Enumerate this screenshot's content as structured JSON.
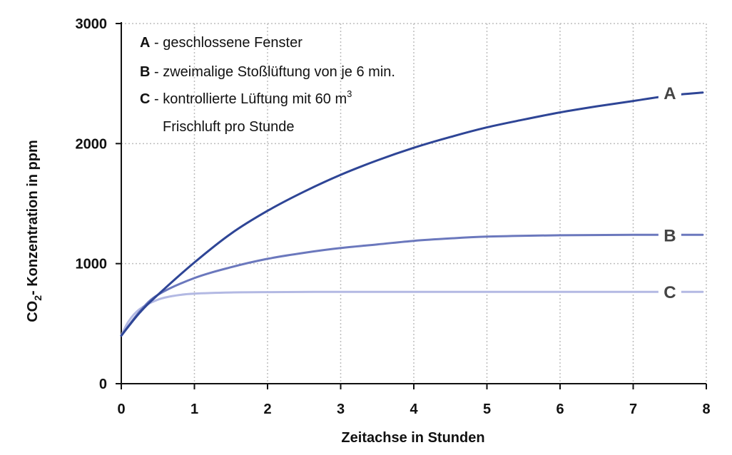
{
  "chart_data": {
    "type": "line",
    "title": "",
    "xlabel": "Zeitachse in Stunden",
    "ylabel": {
      "prefix": "CO",
      "sub": "2",
      "suffix": "- Konzentration in ppm"
    },
    "xlim": [
      0,
      8
    ],
    "ylim": [
      0,
      3000
    ],
    "x_ticks": [
      0,
      1,
      2,
      3,
      4,
      5,
      6,
      7,
      8
    ],
    "y_ticks": [
      0,
      1000,
      2000,
      3000
    ],
    "grid": true,
    "legend_position": "top-left",
    "legend": [
      {
        "key": "A",
        "text": " - geschlossene Fenster"
      },
      {
        "key": "B",
        "text": " - zweimalige Stoßlüftung von je 6 min."
      },
      {
        "key": "C",
        "text": " - kontrollierte Lüftung mit 60 m",
        "sup": "3",
        "continuation": "Frischluft pro Stunde"
      }
    ],
    "series": [
      {
        "name": "A",
        "color": "#2e4596",
        "x": [
          0,
          0.25,
          0.5,
          1,
          1.5,
          2,
          2.5,
          3,
          3.5,
          4,
          4.5,
          5,
          5.5,
          6,
          6.5,
          7,
          7.5,
          7.95
        ],
        "y": [
          400,
          590,
          740,
          1010,
          1250,
          1440,
          1600,
          1740,
          1860,
          1965,
          2055,
          2135,
          2200,
          2260,
          2310,
          2355,
          2400,
          2425
        ]
      },
      {
        "name": "B",
        "color": "#6b78bd",
        "x": [
          0,
          0.25,
          0.5,
          1,
          1.5,
          2,
          2.5,
          3,
          3.5,
          4,
          4.5,
          5,
          5.5,
          6,
          7,
          7.95
        ],
        "y": [
          400,
          600,
          740,
          880,
          970,
          1040,
          1090,
          1130,
          1160,
          1190,
          1210,
          1225,
          1232,
          1236,
          1240,
          1240
        ]
      },
      {
        "name": "C",
        "color": "#b3b9e3",
        "x": [
          0,
          0.1,
          0.25,
          0.5,
          0.75,
          1,
          1.5,
          2,
          3,
          4,
          5,
          6,
          7,
          7.95
        ],
        "y": [
          400,
          520,
          620,
          700,
          735,
          750,
          760,
          763,
          765,
          765,
          765,
          765,
          765,
          765
        ]
      }
    ],
    "end_labels": [
      "A",
      "B",
      "C"
    ]
  }
}
